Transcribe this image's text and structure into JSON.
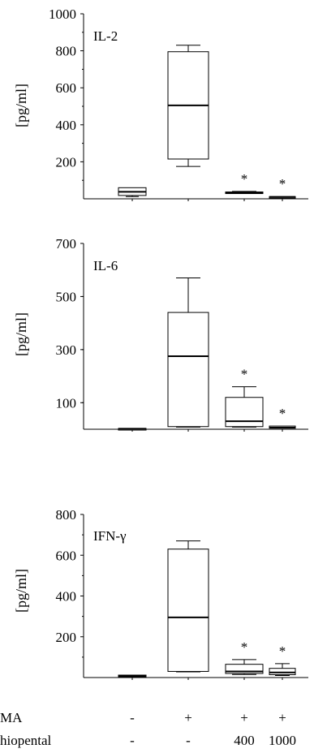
{
  "chart_data": [
    {
      "type": "box",
      "title": "IL-2",
      "ylabel": "[pg/ml]",
      "ylim": [
        0,
        1000
      ],
      "yticks": [
        200,
        400,
        600,
        800,
        1000
      ],
      "tick_labels": [
        "200",
        "400",
        "600",
        "800",
        "1000"
      ],
      "boxes": [
        {
          "whisker_low": 12,
          "q1": 18,
          "median": 38,
          "q3": 60,
          "whisker_high": 60,
          "marker": ""
        },
        {
          "whisker_low": 175,
          "q1": 215,
          "median": 505,
          "q3": 795,
          "whisker_high": 830,
          "marker": ""
        },
        {
          "whisker_low": 28,
          "q1": 30,
          "median": 33,
          "q3": 37,
          "whisker_high": 40,
          "marker": "*"
        },
        {
          "whisker_low": 8,
          "q1": 9,
          "median": 10,
          "q3": 12,
          "whisker_high": 13,
          "marker": "*"
        }
      ]
    },
    {
      "type": "box",
      "title": "IL-6",
      "ylabel": "[pg/ml]",
      "ylim": [
        0,
        700
      ],
      "yticks": [
        100,
        300,
        500,
        700
      ],
      "tick_labels": [
        "100",
        "300",
        "500",
        "700"
      ],
      "boxes": [
        {
          "whisker_low": 1,
          "q1": 1,
          "median": 2,
          "q3": 3,
          "whisker_high": 3,
          "marker": ""
        },
        {
          "whisker_low": 8,
          "q1": 10,
          "median": 275,
          "q3": 440,
          "whisker_high": 570,
          "marker": ""
        },
        {
          "whisker_low": 8,
          "q1": 10,
          "median": 30,
          "q3": 120,
          "whisker_high": 160,
          "marker": "*"
        },
        {
          "whisker_low": 3,
          "q1": 4,
          "median": 6,
          "q3": 12,
          "whisker_high": 12,
          "marker": "*"
        }
      ]
    },
    {
      "type": "box",
      "title": "IFN-γ",
      "ylabel": "[pg/ml]",
      "ylim": [
        0,
        800
      ],
      "yticks": [
        200,
        400,
        600,
        800
      ],
      "tick_labels": [
        "200",
        "400",
        "600",
        "800"
      ],
      "boxes": [
        {
          "whisker_low": 5,
          "q1": 7,
          "median": 9,
          "q3": 12,
          "whisker_high": 12,
          "marker": ""
        },
        {
          "whisker_low": 28,
          "q1": 30,
          "median": 295,
          "q3": 630,
          "whisker_high": 670,
          "marker": ""
        },
        {
          "whisker_low": 15,
          "q1": 20,
          "median": 30,
          "q3": 65,
          "whisker_high": 88,
          "marker": "*"
        },
        {
          "whisker_low": 10,
          "q1": 14,
          "median": 25,
          "q3": 45,
          "whisker_high": 68,
          "marker": "*"
        }
      ]
    }
  ],
  "conditions": {
    "row1_label": "MA",
    "row1_values": [
      "-",
      "+",
      "+",
      "+"
    ],
    "row2_label": "hiopental",
    "row2_values": [
      "-",
      "-",
      "400",
      "1000"
    ]
  }
}
